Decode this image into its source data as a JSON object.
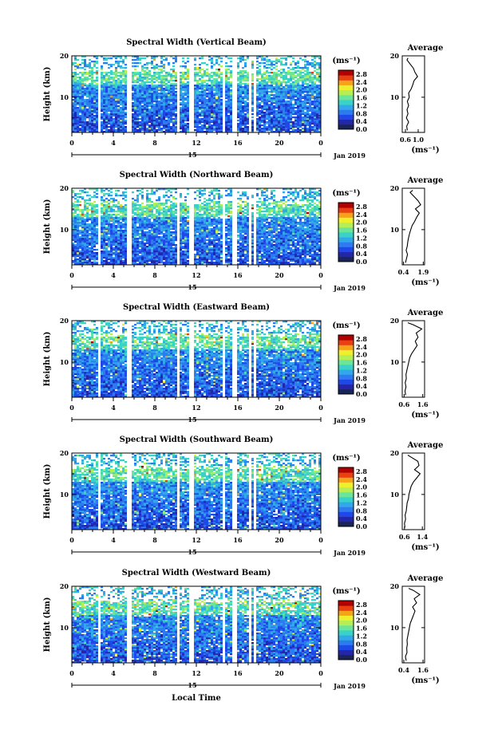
{
  "colors": {
    "background": "#ffffff",
    "colormap": [
      "#1a2456",
      "#2326a8",
      "#1e49e8",
      "#2c7cf0",
      "#31a9e8",
      "#38d2c8",
      "#6ae59a",
      "#b5ee55",
      "#eef02e",
      "#f5a318",
      "#e84010",
      "#b00000"
    ]
  },
  "figure": {
    "xlabel": "Local Time",
    "date_label": "Jan 2019",
    "day_label": "15",
    "cb_unit": "(ms⁻¹)",
    "avg_title": "Average",
    "avg_unit": "(ms⁻¹)",
    "ylabel": "Height (km)"
  },
  "chart_data": [
    {
      "type": "heatmap",
      "title": "Spectral Width (Vertical Beam)",
      "xlabel": "",
      "ylabel": "Height (km)",
      "x_ticks": [
        "0",
        "4",
        "8",
        "12",
        "16",
        "20",
        "0"
      ],
      "xlim": [
        0,
        24
      ],
      "ylim": [
        1.5,
        20
      ],
      "y_ticks": [
        "20",
        "10"
      ],
      "colorbar": {
        "label": "(ms⁻¹)",
        "ticks": [
          "2.8",
          "2.4",
          "2.0",
          "1.6",
          "1.2",
          "0.8",
          "0.4",
          "0.0"
        ],
        "range": [
          0,
          3.0
        ]
      },
      "data_gaps_hours": [
        [
          2.4,
          2.7
        ],
        [
          5.2,
          5.6
        ],
        [
          10.0,
          10.3
        ],
        [
          11.3,
          11.7
        ],
        [
          14.5,
          14.7
        ],
        [
          15.4,
          15.9
        ],
        [
          16.9,
          17.1
        ],
        [
          17.4,
          17.7
        ]
      ],
      "average_profile": {
        "title": "Average",
        "x_ticks": [
          "0.6",
          "1.0"
        ],
        "xlim": [
          0.5,
          1.2
        ],
        "y_ticks": [
          "20",
          "10"
        ],
        "height_km": [
          2,
          3,
          4,
          5,
          6,
          7,
          8,
          9,
          10,
          11,
          12,
          13,
          14,
          15,
          16,
          17,
          18,
          19,
          19.5
        ],
        "width": [
          0.66,
          0.64,
          0.7,
          0.63,
          0.68,
          0.65,
          0.7,
          0.66,
          0.72,
          0.7,
          0.78,
          0.83,
          0.87,
          0.98,
          0.9,
          0.85,
          0.75,
          0.65,
          0.68
        ]
      }
    },
    {
      "type": "heatmap",
      "title": "Spectral Width (Northward Beam)",
      "xlabel": "",
      "ylabel": "Height (km)",
      "x_ticks": [
        "0",
        "4",
        "8",
        "12",
        "16",
        "20",
        "0"
      ],
      "xlim": [
        0,
        24
      ],
      "ylim": [
        1.5,
        20
      ],
      "y_ticks": [
        "20",
        "10"
      ],
      "colorbar": {
        "label": "(ms⁻¹)",
        "ticks": [
          "2.8",
          "2.4",
          "2.0",
          "1.6",
          "1.2",
          "0.8",
          "0.4",
          "0.0"
        ],
        "range": [
          0,
          3.0
        ]
      },
      "data_gaps_hours": [
        [
          2.4,
          2.7
        ],
        [
          5.2,
          5.6
        ],
        [
          10.0,
          10.3
        ],
        [
          11.3,
          11.7
        ],
        [
          14.5,
          14.7
        ],
        [
          15.4,
          15.9
        ],
        [
          16.9,
          17.1
        ],
        [
          17.4,
          17.7
        ]
      ],
      "average_profile": {
        "title": "Average",
        "x_ticks": [
          "0.4",
          "1.9"
        ],
        "xlim": [
          0.3,
          2.0
        ],
        "y_ticks": [
          "20",
          "10"
        ],
        "height_km": [
          2,
          3,
          4,
          5,
          6,
          7,
          8,
          9,
          10,
          11,
          12,
          13,
          14,
          15,
          16,
          17,
          18,
          19,
          19.5
        ],
        "width": [
          0.55,
          0.62,
          0.7,
          0.6,
          0.68,
          0.72,
          0.78,
          0.85,
          0.95,
          1.05,
          1.25,
          1.4,
          1.6,
          1.3,
          1.7,
          1.5,
          1.2,
          0.9,
          1.1
        ]
      }
    },
    {
      "type": "heatmap",
      "title": "Spectral Width (Eastward Beam)",
      "xlabel": "",
      "ylabel": "Height (km)",
      "x_ticks": [
        "0",
        "4",
        "8",
        "12",
        "16",
        "20",
        "0"
      ],
      "xlim": [
        0,
        24
      ],
      "ylim": [
        1.5,
        20
      ],
      "y_ticks": [
        "20",
        "10"
      ],
      "colorbar": {
        "label": "(ms⁻¹)",
        "ticks": [
          "2.8",
          "2.4",
          "2.0",
          "1.6",
          "1.2",
          "0.8",
          "0.4",
          "0.0"
        ],
        "range": [
          0,
          3.0
        ]
      },
      "data_gaps_hours": [
        [
          2.4,
          2.7
        ],
        [
          5.2,
          5.6
        ],
        [
          10.0,
          10.3
        ],
        [
          11.3,
          11.7
        ],
        [
          14.5,
          14.7
        ],
        [
          15.4,
          15.9
        ],
        [
          16.9,
          17.1
        ],
        [
          17.4,
          17.7
        ]
      ],
      "average_profile": {
        "title": "Average",
        "x_ticks": [
          "0.6",
          "1.6"
        ],
        "xlim": [
          0.5,
          1.7
        ],
        "y_ticks": [
          "20",
          "10"
        ],
        "height_km": [
          2,
          3,
          4,
          5,
          6,
          7,
          8,
          9,
          10,
          11,
          12,
          13,
          14,
          15,
          16,
          17,
          18,
          19,
          19.5
        ],
        "width": [
          0.68,
          0.65,
          0.7,
          0.66,
          0.72,
          0.7,
          0.75,
          0.8,
          0.85,
          0.9,
          1.0,
          1.15,
          1.3,
          1.2,
          1.35,
          1.25,
          1.55,
          1.1,
          0.8
        ]
      }
    },
    {
      "type": "heatmap",
      "title": "Spectral Width (Southward Beam)",
      "xlabel": "",
      "ylabel": "Height (km)",
      "x_ticks": [
        "0",
        "4",
        "8",
        "12",
        "16",
        "20",
        "0"
      ],
      "xlim": [
        0,
        24
      ],
      "ylim": [
        1.5,
        20
      ],
      "y_ticks": [
        "20",
        "10"
      ],
      "colorbar": {
        "label": "(ms⁻¹)",
        "ticks": [
          "2.8",
          "2.4",
          "2.0",
          "1.6",
          "1.2",
          "0.8",
          "0.4",
          "0.0"
        ],
        "range": [
          0,
          3.0
        ]
      },
      "data_gaps_hours": [
        [
          2.4,
          2.7
        ],
        [
          5.2,
          5.6
        ],
        [
          10.0,
          10.3
        ],
        [
          11.3,
          11.7
        ],
        [
          14.5,
          14.7
        ],
        [
          15.4,
          15.9
        ],
        [
          16.9,
          17.1
        ],
        [
          17.4,
          17.7
        ]
      ],
      "average_profile": {
        "title": "Average",
        "x_ticks": [
          "0.6",
          "1.4"
        ],
        "xlim": [
          0.5,
          1.5
        ],
        "y_ticks": [
          "20",
          "10"
        ],
        "height_km": [
          2,
          3,
          4,
          5,
          6,
          7,
          8,
          9,
          10,
          11,
          12,
          13,
          14,
          15,
          16,
          17,
          18,
          19,
          19.5
        ],
        "width": [
          0.62,
          0.6,
          0.65,
          0.63,
          0.68,
          0.7,
          0.72,
          0.78,
          0.8,
          0.85,
          0.9,
          1.0,
          1.15,
          1.3,
          1.05,
          1.25,
          1.2,
          0.9,
          0.75
        ]
      }
    },
    {
      "type": "heatmap",
      "title": "Spectral Width (Westward Beam)",
      "xlabel": "Local Time",
      "ylabel": "Height (km)",
      "x_ticks": [
        "0",
        "4",
        "8",
        "12",
        "16",
        "20",
        "0"
      ],
      "xlim": [
        0,
        24
      ],
      "ylim": [
        1.5,
        20
      ],
      "y_ticks": [
        "20",
        "10"
      ],
      "colorbar": {
        "label": "(ms⁻¹)",
        "ticks": [
          "2.8",
          "2.4",
          "2.0",
          "1.6",
          "1.2",
          "0.8",
          "0.4",
          "0.0"
        ],
        "range": [
          0,
          3.0
        ]
      },
      "data_gaps_hours": [
        [
          2.4,
          2.7
        ],
        [
          5.2,
          5.6
        ],
        [
          10.0,
          10.3
        ],
        [
          11.3,
          11.7
        ],
        [
          14.5,
          14.7
        ],
        [
          15.4,
          15.9
        ],
        [
          16.9,
          17.1
        ],
        [
          17.4,
          17.7
        ]
      ],
      "average_profile": {
        "title": "Average",
        "x_ticks": [
          "0.4",
          "1.6"
        ],
        "xlim": [
          0.3,
          1.7
        ],
        "y_ticks": [
          "20",
          "10"
        ],
        "height_km": [
          2,
          3,
          4,
          5,
          6,
          7,
          8,
          9,
          10,
          11,
          12,
          13,
          14,
          15,
          16,
          17,
          18,
          19,
          19.5
        ],
        "width": [
          0.55,
          0.5,
          0.6,
          0.58,
          0.62,
          0.6,
          0.65,
          0.7,
          0.75,
          0.8,
          0.9,
          1.0,
          1.1,
          0.95,
          1.2,
          1.05,
          1.4,
          1.0,
          0.7
        ]
      }
    }
  ]
}
